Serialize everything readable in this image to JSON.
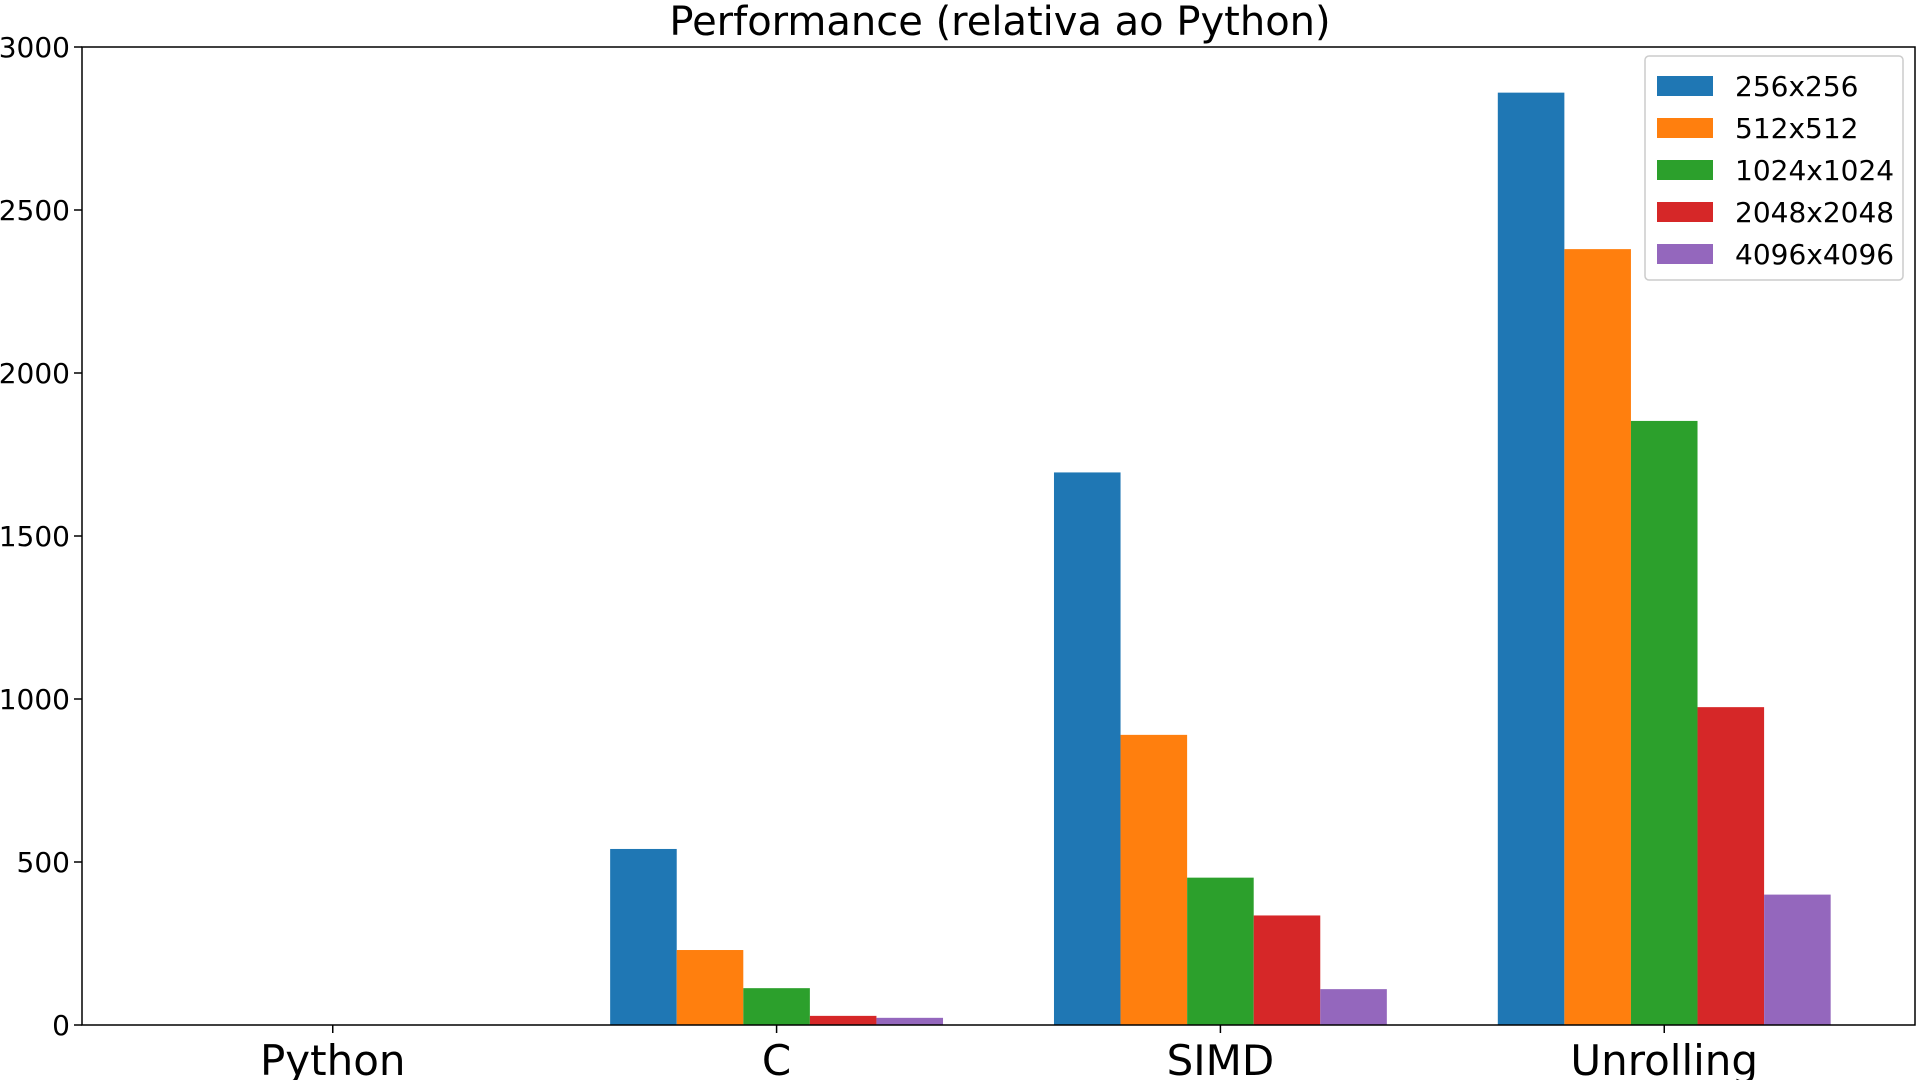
{
  "chart_data": {
    "type": "bar",
    "title": "Performance (relativa ao Python)",
    "xlabel": "",
    "ylabel": "",
    "categories": [
      "Python",
      "C",
      "SIMD",
      "Unrolling"
    ],
    "ylim": [
      0,
      3000
    ],
    "yticks": [
      0,
      500,
      1000,
      1500,
      2000,
      2500,
      3000
    ],
    "yticks_labels": [
      "0",
      "500",
      "1000",
      "1500",
      "2000",
      "2500",
      "3000"
    ],
    "grid": false,
    "legend_position": "top-right",
    "series": [
      {
        "name": "256x256",
        "color": "#1f77b4",
        "values": [
          1,
          540,
          1695,
          2860
        ]
      },
      {
        "name": "512x512",
        "color": "#ff7f0e",
        "values": [
          1,
          230,
          890,
          2380
        ]
      },
      {
        "name": "1024x1024",
        "color": "#2ca02c",
        "values": [
          1,
          113,
          452,
          1853
        ]
      },
      {
        "name": "2048x2048",
        "color": "#d62728",
        "values": [
          1,
          28,
          336,
          975
        ]
      },
      {
        "name": "4096x4096",
        "color": "#9467bd",
        "values": [
          1,
          22,
          110,
          400
        ]
      }
    ]
  }
}
